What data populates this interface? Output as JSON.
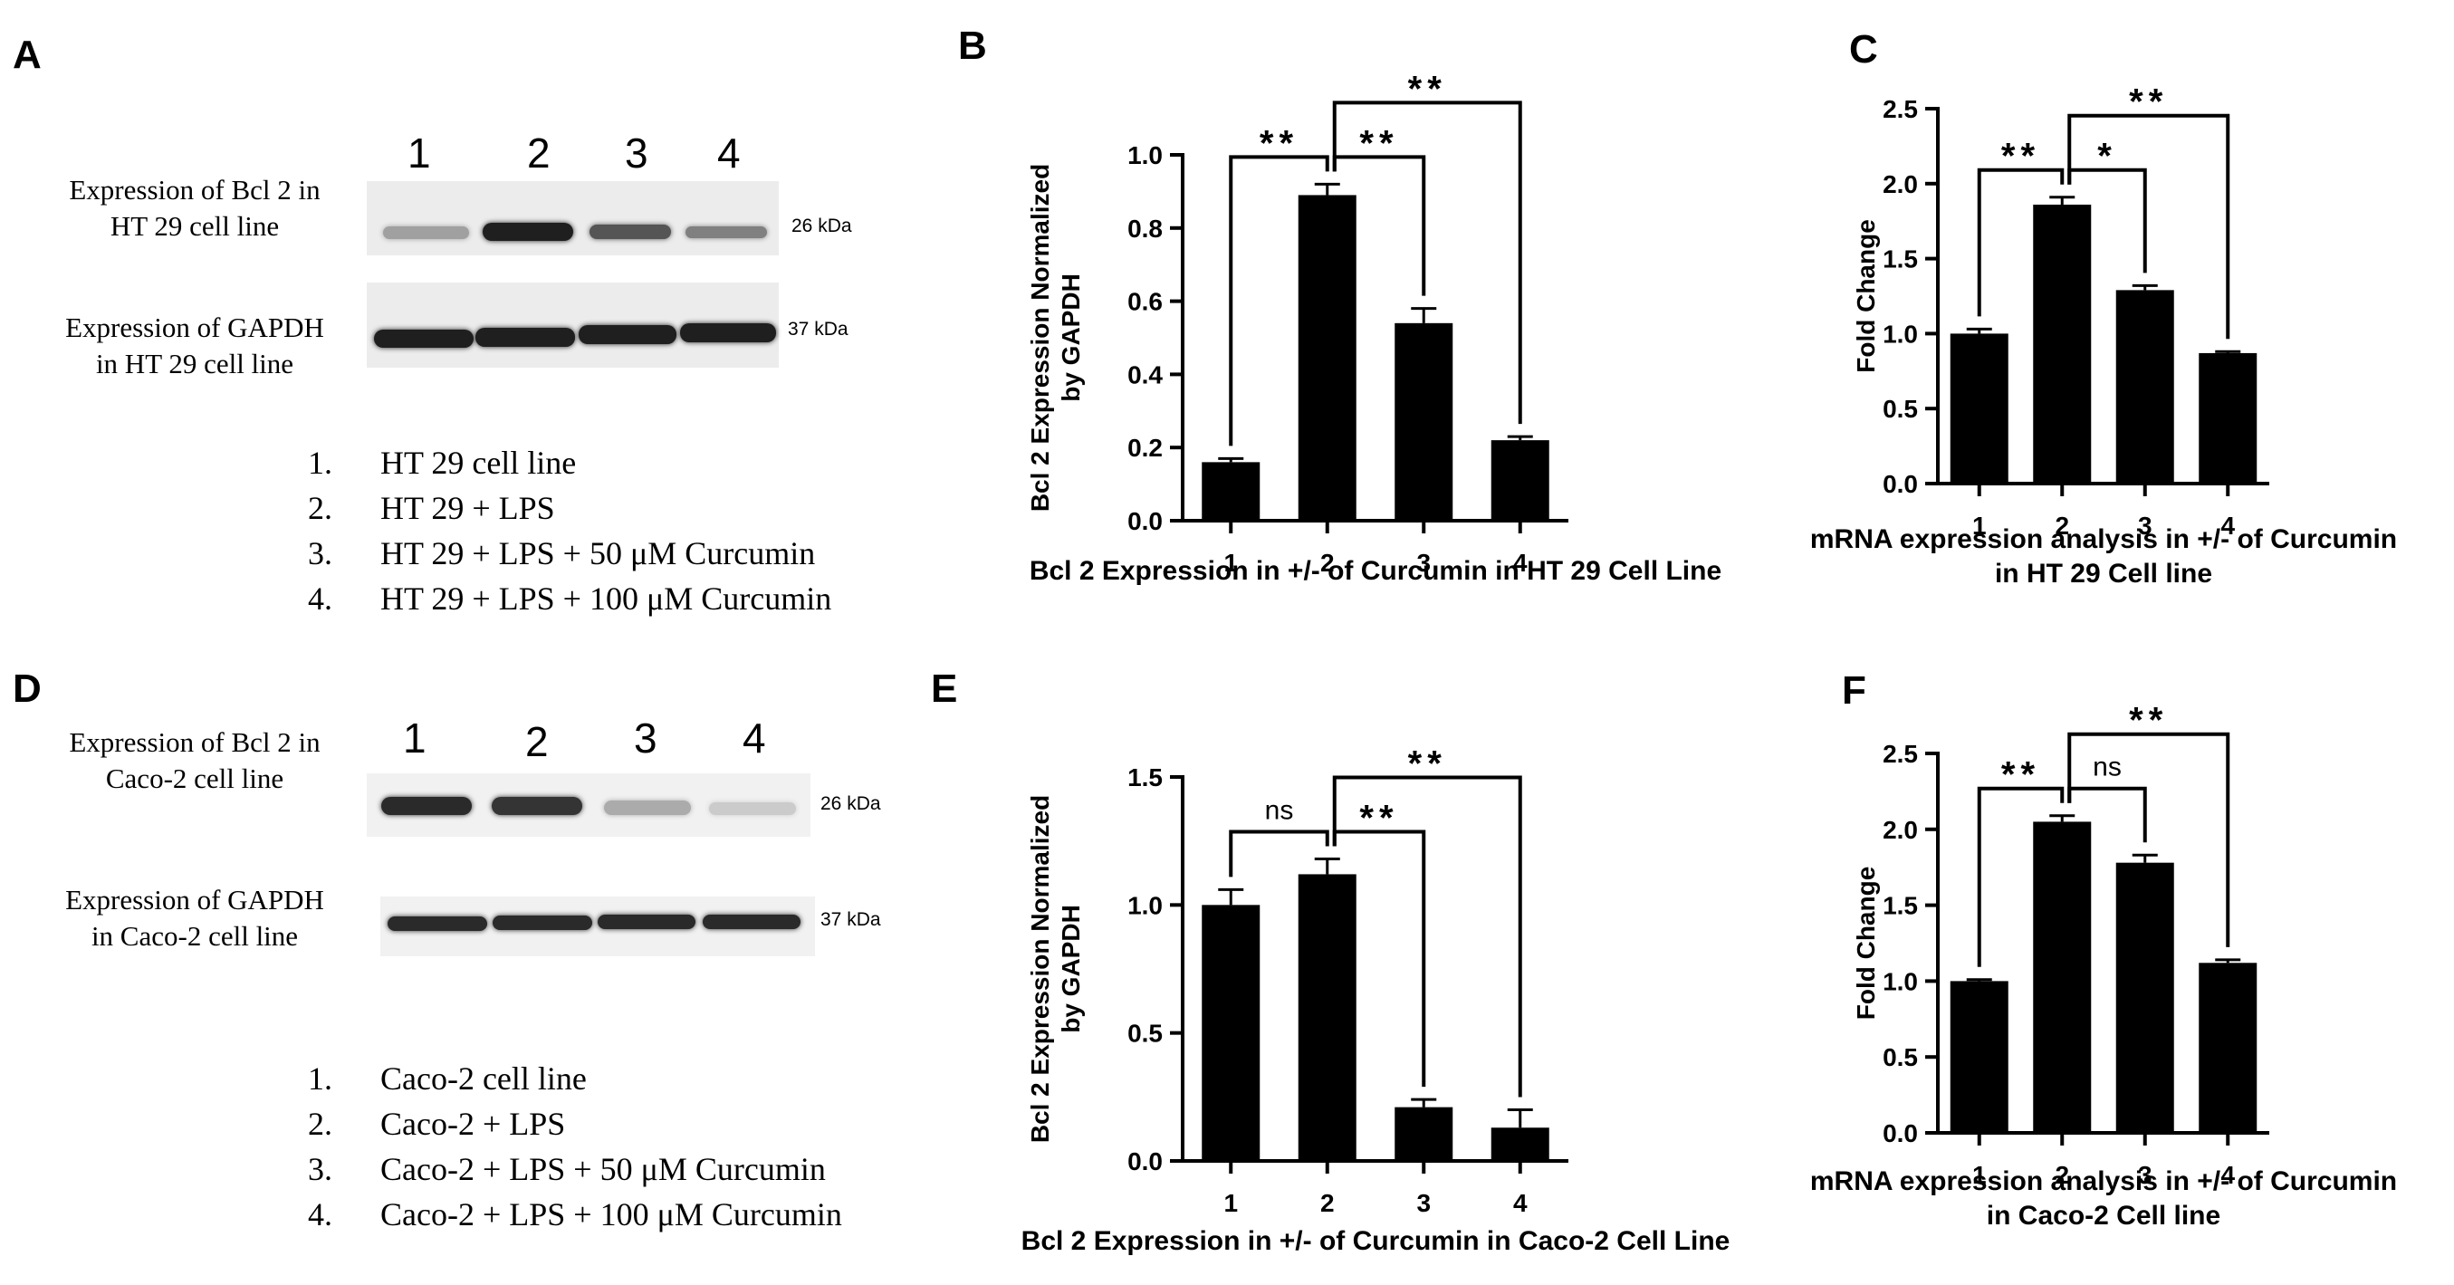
{
  "panel_labels": [
    "A",
    "B",
    "C",
    "D",
    "E",
    "F"
  ],
  "blot_A": {
    "lanes": [
      "1",
      "2",
      "3",
      "4"
    ],
    "bcl2_title_lines": [
      "Expression of Bcl 2 in",
      "HT 29 cell line"
    ],
    "gapdh_title_lines": [
      "Expression of GAPDH",
      "in HT 29 cell line"
    ],
    "bcl2_kda": "26 kDa",
    "gapdh_kda": "37 kDa",
    "bcl2_band_intensity": [
      0.35,
      0.95,
      0.7,
      0.5
    ],
    "gapdh_band_intensity": [
      0.95,
      0.95,
      0.95,
      0.95
    ],
    "legend": [
      {
        "num": "1.",
        "text": "HT 29 cell line"
      },
      {
        "num": "2.",
        "text": "HT 29 + LPS"
      },
      {
        "num": "3.",
        "text": "HT 29 + LPS + 50 μM Curcumin"
      },
      {
        "num": "4.",
        "text": "HT 29 + LPS + 100 μM Curcumin"
      }
    ]
  },
  "blot_D": {
    "lanes": [
      "1",
      "2",
      "3",
      "4"
    ],
    "bcl2_title_lines": [
      "Expression of Bcl 2 in",
      "Caco-2 cell line"
    ],
    "gapdh_title_lines": [
      "Expression of GAPDH",
      "in Caco-2 cell line"
    ],
    "bcl2_kda": "26 kDa",
    "gapdh_kda": "37 kDa",
    "bcl2_band_intensity": [
      0.9,
      0.85,
      0.3,
      0.15
    ],
    "gapdh_band_intensity": [
      0.9,
      0.9,
      0.9,
      0.9
    ],
    "legend": [
      {
        "num": "1.",
        "text": "Caco-2 cell line"
      },
      {
        "num": "2.",
        "text": "Caco-2 + LPS"
      },
      {
        "num": "3.",
        "text": "Caco-2 + LPS + 50 μM Curcumin"
      },
      {
        "num": "4.",
        "text": "Caco-2 + LPS + 100 μM Curcumin"
      }
    ]
  },
  "chart_data": [
    {
      "id": "B",
      "type": "bar",
      "categories": [
        "1",
        "2",
        "3",
        "4"
      ],
      "values": [
        0.16,
        0.89,
        0.54,
        0.22
      ],
      "errors": [
        0.01,
        0.03,
        0.04,
        0.01
      ],
      "ylim": [
        0,
        1.0
      ],
      "yticks": [
        "0.0",
        "0.2",
        "0.4",
        "0.6",
        "0.8",
        "1.0"
      ],
      "ytick_values": [
        0,
        0.2,
        0.4,
        0.6,
        0.8,
        1.0
      ],
      "ylabel_lines": [
        "Bcl 2 Expression Normalized",
        "by GAPDH"
      ],
      "xlabel_lines": [
        "Bcl 2 Expression in +/- of Curcumin in HT 29 Cell Line"
      ],
      "comparisons": [
        {
          "from": 0,
          "to": 1,
          "label": "**"
        },
        {
          "from": 1,
          "to": 2,
          "label": "**"
        },
        {
          "from": 1,
          "to": 3,
          "label": "**"
        }
      ]
    },
    {
      "id": "C",
      "type": "bar",
      "categories": [
        "1",
        "2",
        "3",
        "4"
      ],
      "values": [
        1.0,
        1.86,
        1.29,
        0.87
      ],
      "errors": [
        0.03,
        0.05,
        0.03,
        0.01
      ],
      "ylim": [
        0,
        2.5
      ],
      "yticks": [
        "0.0",
        "0.5",
        "1.0",
        "1.5",
        "2.0",
        "2.5"
      ],
      "ytick_values": [
        0,
        0.5,
        1.0,
        1.5,
        2.0,
        2.5
      ],
      "ylabel_lines": [
        "Fold Change"
      ],
      "xlabel_lines": [
        "mRNA expression analysis in +/- of Curcumin",
        "in HT 29 Cell line"
      ],
      "comparisons": [
        {
          "from": 0,
          "to": 1,
          "label": "**"
        },
        {
          "from": 1,
          "to": 2,
          "label": "*"
        },
        {
          "from": 1,
          "to": 3,
          "label": "**"
        }
      ]
    },
    {
      "id": "E",
      "type": "bar",
      "categories": [
        "1",
        "2",
        "3",
        "4"
      ],
      "values": [
        1.0,
        1.12,
        0.21,
        0.13
      ],
      "errors": [
        0.06,
        0.06,
        0.03,
        0.07
      ],
      "ylim": [
        0,
        1.5
      ],
      "yticks": [
        "0.0",
        "0.5",
        "1.0",
        "1.5"
      ],
      "ytick_values": [
        0,
        0.5,
        1.0,
        1.5
      ],
      "ylabel_lines": [
        "Bcl 2 Expression Normalized",
        "by GAPDH"
      ],
      "xlabel_lines": [
        "Bcl 2 Expression in +/- of Curcumin in Caco-2 Cell Line"
      ],
      "comparisons": [
        {
          "from": 0,
          "to": 1,
          "label": "ns"
        },
        {
          "from": 1,
          "to": 2,
          "label": "**"
        },
        {
          "from": 1,
          "to": 3,
          "label": "**"
        }
      ]
    },
    {
      "id": "F",
      "type": "bar",
      "categories": [
        "1",
        "2",
        "3",
        "4"
      ],
      "values": [
        1.0,
        2.05,
        1.78,
        1.12
      ],
      "errors": [
        0.01,
        0.04,
        0.05,
        0.02
      ],
      "ylim": [
        0,
        2.5
      ],
      "yticks": [
        "0.0",
        "0.5",
        "1.0",
        "1.5",
        "2.0",
        "2.5"
      ],
      "ytick_values": [
        0,
        0.5,
        1.0,
        1.5,
        2.0,
        2.5
      ],
      "ylabel_lines": [
        "Fold Change"
      ],
      "xlabel_lines": [
        "mRNA expression analysis in +/- of Curcumin",
        "in Caco-2 Cell line"
      ],
      "comparisons": [
        {
          "from": 0,
          "to": 1,
          "label": "**"
        },
        {
          "from": 1,
          "to": 2,
          "label": "ns"
        },
        {
          "from": 1,
          "to": 3,
          "label": "**"
        }
      ]
    }
  ]
}
